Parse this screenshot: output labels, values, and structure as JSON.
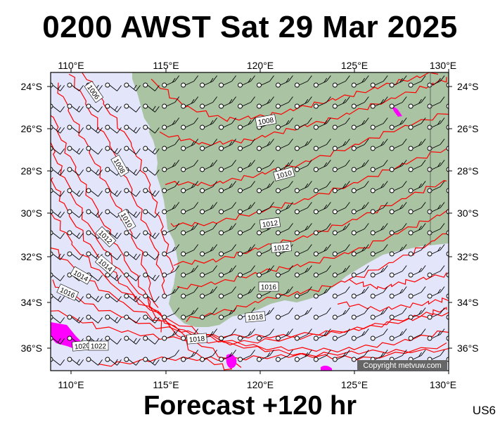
{
  "header": {
    "title": "0200 AWST Sat 29 Mar 2025"
  },
  "footer": {
    "forecast": "Forecast +120 hr",
    "code": "US6"
  },
  "copyright": "Copyright metvuw.com",
  "colors": {
    "ocean": "#e3e6fb",
    "land": "#a9c3a3",
    "isobar": "#ff0000",
    "rain": "#ff00ff",
    "barb": "#000000"
  },
  "axes": {
    "lon_ticks": [
      "110°E",
      "115°E",
      "120°E",
      "125°E",
      "130°E"
    ],
    "lat_ticks": [
      "24°S",
      "26°S",
      "28°S",
      "30°S",
      "32°S",
      "34°S",
      "36°S"
    ]
  },
  "isobar_labels": [
    "1006",
    "1008",
    "1008",
    "1010",
    "1010",
    "1012",
    "1012",
    "1012",
    "1014",
    "1014",
    "1016",
    "1016",
    "1018",
    "1018",
    "1020",
    "1022"
  ]
}
